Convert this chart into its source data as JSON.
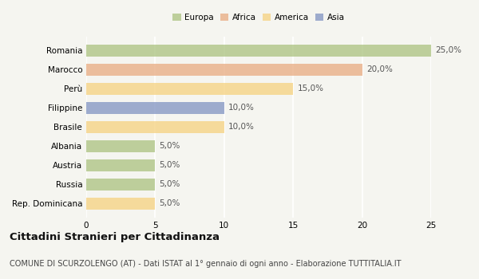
{
  "categories": [
    "Romania",
    "Marocco",
    "Perù",
    "Filippine",
    "Brasile",
    "Albania",
    "Austria",
    "Russia",
    "Rep. Dominicana"
  ],
  "values": [
    25.0,
    20.0,
    15.0,
    10.0,
    10.0,
    5.0,
    5.0,
    5.0,
    5.0
  ],
  "colors": [
    "#a8c07a",
    "#e8a87c",
    "#f5d07a",
    "#7b8fc0",
    "#f5d07a",
    "#a8c07a",
    "#a8c07a",
    "#a8c07a",
    "#f5d07a"
  ],
  "legend_labels": [
    "Europa",
    "Africa",
    "America",
    "Asia"
  ],
  "legend_colors": [
    "#a8c07a",
    "#e8a87c",
    "#f5d07a",
    "#7b8fc0"
  ],
  "xlim": [
    0,
    25
  ],
  "xticks": [
    0,
    5,
    10,
    15,
    20,
    25
  ],
  "title": "Cittadini Stranieri per Cittadinanza",
  "subtitle": "COMUNE DI SCURZOLENGO (AT) - Dati ISTAT al 1° gennaio di ogni anno - Elaborazione TUTTITALIA.IT",
  "bar_alpha": 0.72,
  "background_color": "#f5f5f0",
  "grid_color": "#ffffff",
  "title_fontsize": 9.5,
  "subtitle_fontsize": 7,
  "tick_fontsize": 7.5,
  "value_fontsize": 7.5,
  "bar_height": 0.62
}
